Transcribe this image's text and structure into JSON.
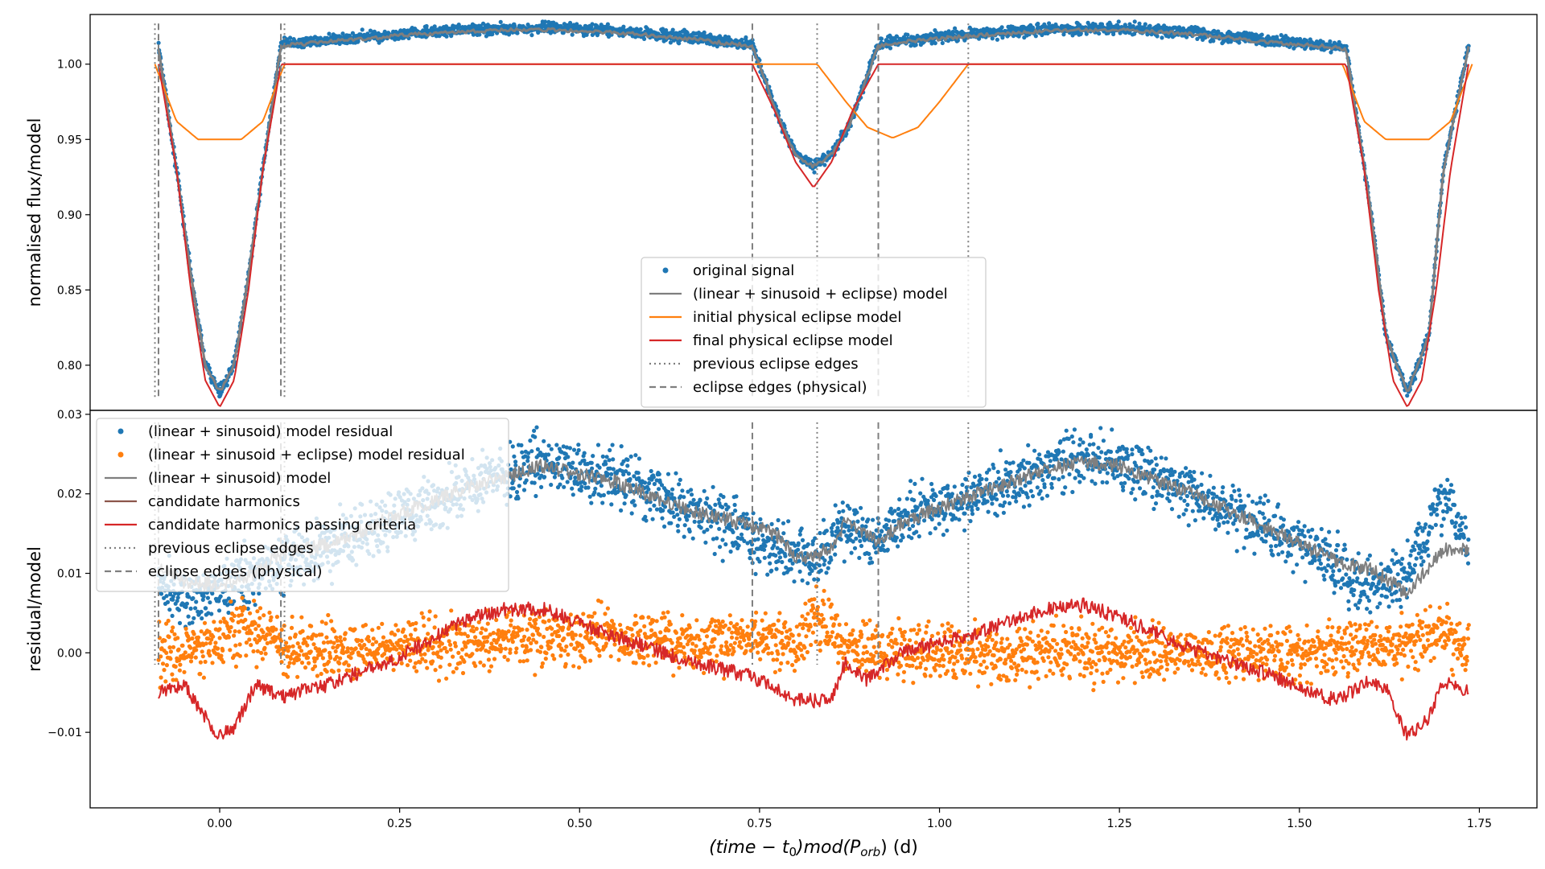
{
  "chart_data": [
    {
      "type": "line",
      "panel": "top",
      "title": "",
      "xlabel": "",
      "ylabel": "normalised flux/model",
      "xlim": [
        -0.18,
        1.83
      ],
      "ylim": [
        0.77,
        1.033
      ],
      "yticks": [
        0.8,
        0.85,
        0.9,
        0.95,
        1.0
      ],
      "ytick_labels": [
        "0.80",
        "0.85",
        "0.90",
        "0.95",
        "1.00"
      ],
      "legend_position": "lower-center",
      "legend": [
        {
          "label": "original signal",
          "style": "scatter",
          "color": "#1f77b4"
        },
        {
          "label": "(linear + sinusoid + eclipse) model",
          "style": "solid",
          "color": "#7f7f7f"
        },
        {
          "label": "initial physical eclipse model",
          "style": "solid",
          "color": "#ff7f0e"
        },
        {
          "label": "final physical eclipse model",
          "style": "solid",
          "color": "#d62728"
        },
        {
          "label": "previous eclipse edges",
          "style": "dotted",
          "color": "#7f7f7f"
        },
        {
          "label": "eclipse edges (physical)",
          "style": "dashed",
          "color": "#7f7f7f"
        }
      ],
      "previous_eclipse_edges": [
        -0.09,
        0.09,
        0.83,
        1.04
      ],
      "physical_eclipse_edges": [
        -0.085,
        0.085,
        0.74,
        0.915
      ],
      "series": [
        {
          "name": "original signal",
          "kind": "scatter",
          "color": "#1f77b4",
          "x": [
            -0.085,
            -0.06,
            -0.04,
            -0.02,
            0.0,
            0.02,
            0.04,
            0.06,
            0.085,
            0.15,
            0.25,
            0.35,
            0.45,
            0.55,
            0.65,
            0.7,
            0.74,
            0.78,
            0.8,
            0.825,
            0.85,
            0.875,
            0.915,
            0.95,
            1.05,
            1.15,
            1.25,
            1.35,
            1.45,
            1.55,
            1.565,
            1.6,
            1.62,
            1.65,
            1.68,
            1.7,
            1.735
          ],
          "y": [
            1.012,
            0.93,
            0.86,
            0.8,
            0.782,
            0.8,
            0.86,
            0.93,
            1.013,
            1.016,
            1.02,
            1.023,
            1.024,
            1.022,
            1.018,
            1.015,
            1.013,
            0.96,
            0.94,
            0.932,
            0.94,
            0.96,
            1.013,
            1.016,
            1.02,
            1.023,
            1.024,
            1.021,
            1.016,
            1.012,
            1.011,
            0.9,
            0.82,
            0.782,
            0.82,
            0.93,
            1.012
          ]
        },
        {
          "name": "(linear + sinusoid + eclipse) model",
          "kind": "line",
          "color": "#7f7f7f",
          "x": [
            -0.085,
            -0.06,
            -0.04,
            -0.02,
            0.0,
            0.02,
            0.04,
            0.06,
            0.085,
            0.15,
            0.25,
            0.35,
            0.45,
            0.55,
            0.65,
            0.7,
            0.74,
            0.78,
            0.8,
            0.825,
            0.85,
            0.875,
            0.915,
            0.95,
            1.05,
            1.15,
            1.25,
            1.35,
            1.45,
            1.55,
            1.565,
            1.6,
            1.62,
            1.65,
            1.68,
            1.7,
            1.735
          ],
          "y": [
            1.011,
            0.93,
            0.86,
            0.8,
            0.782,
            0.8,
            0.86,
            0.93,
            1.012,
            1.015,
            1.019,
            1.022,
            1.023,
            1.021,
            1.017,
            1.014,
            1.012,
            0.96,
            0.94,
            0.932,
            0.94,
            0.96,
            1.012,
            1.015,
            1.019,
            1.022,
            1.023,
            1.02,
            1.015,
            1.011,
            1.01,
            0.9,
            0.82,
            0.782,
            0.82,
            0.93,
            1.011
          ]
        },
        {
          "name": "initial physical eclipse model",
          "kind": "line",
          "color": "#ff7f0e",
          "x": [
            -0.09,
            -0.06,
            -0.03,
            0.0,
            0.03,
            0.06,
            0.09,
            0.5,
            0.83,
            0.87,
            0.9,
            0.935,
            0.97,
            1.0,
            1.04,
            1.5,
            1.56,
            1.59,
            1.62,
            1.65,
            1.68,
            1.71,
            1.74
          ],
          "y": [
            1.0,
            0.962,
            0.95,
            0.95,
            0.95,
            0.962,
            1.0,
            1.0,
            1.0,
            0.975,
            0.958,
            0.951,
            0.958,
            0.975,
            1.0,
            1.0,
            1.0,
            0.962,
            0.95,
            0.95,
            0.95,
            0.962,
            1.0
          ]
        },
        {
          "name": "final physical eclipse model",
          "kind": "line",
          "color": "#d62728",
          "x": [
            -0.085,
            -0.06,
            -0.04,
            -0.02,
            0.0,
            0.02,
            0.04,
            0.06,
            0.085,
            0.5,
            0.74,
            0.77,
            0.8,
            0.825,
            0.85,
            0.88,
            0.915,
            1.5,
            1.565,
            1.59,
            1.61,
            1.63,
            1.65,
            1.67,
            1.69,
            1.71,
            1.735
          ],
          "y": [
            1.0,
            0.93,
            0.85,
            0.79,
            0.772,
            0.79,
            0.85,
            0.93,
            1.0,
            1.0,
            1.0,
            0.97,
            0.935,
            0.918,
            0.935,
            0.97,
            1.0,
            1.0,
            1.0,
            0.93,
            0.85,
            0.79,
            0.772,
            0.79,
            0.85,
            0.93,
            1.0
          ]
        }
      ]
    },
    {
      "type": "line",
      "panel": "bottom",
      "title": "",
      "xlabel": "(time − t0)mod(Porb) (d)",
      "ylabel": "residual/model",
      "xlim": [
        -0.18,
        1.83
      ],
      "ylim": [
        -0.0195,
        0.0305
      ],
      "xticks": [
        0.0,
        0.25,
        0.5,
        0.75,
        1.0,
        1.25,
        1.5,
        1.75
      ],
      "xtick_labels": [
        "0.00",
        "0.25",
        "0.50",
        "0.75",
        "1.00",
        "1.25",
        "1.50",
        "1.75"
      ],
      "yticks": [
        -0.01,
        0.0,
        0.01,
        0.02,
        0.03
      ],
      "ytick_labels": [
        "−0.01",
        "0.00",
        "0.01",
        "0.02",
        "0.03"
      ],
      "legend_position": "upper-left",
      "legend": [
        {
          "label": "(linear + sinusoid) model residual",
          "style": "scatter",
          "color": "#1f77b4"
        },
        {
          "label": "(linear + sinusoid + eclipse) model residual",
          "style": "scatter",
          "color": "#ff7f0e"
        },
        {
          "label": "(linear + sinusoid) model",
          "style": "solid",
          "color": "#7f7f7f"
        },
        {
          "label": "candidate harmonics",
          "style": "solid",
          "color": "#8c564b"
        },
        {
          "label": "candidate harmonics passing criteria",
          "style": "solid",
          "color": "#d62728"
        },
        {
          "label": "previous eclipse edges",
          "style": "dotted",
          "color": "#7f7f7f"
        },
        {
          "label": "eclipse edges (physical)",
          "style": "dashed",
          "color": "#7f7f7f"
        }
      ],
      "previous_eclipse_edges": [
        -0.09,
        0.09,
        0.83,
        1.04
      ],
      "physical_eclipse_edges": [
        -0.085,
        0.085,
        0.74,
        0.915
      ],
      "series": [
        {
          "name": "(linear + sinusoid) model residual",
          "kind": "scatter",
          "color": "#1f77b4",
          "x": [
            -0.085,
            -0.05,
            0.0,
            0.05,
            0.085,
            0.15,
            0.25,
            0.35,
            0.45,
            0.55,
            0.65,
            0.74,
            0.8,
            0.825,
            0.87,
            0.915,
            0.95,
            1.05,
            1.15,
            1.2,
            1.25,
            1.35,
            1.45,
            1.55,
            1.6,
            1.65,
            1.7,
            1.735
          ],
          "y": [
            0.01,
            0.006,
            0.008,
            0.01,
            0.012,
            0.013,
            0.017,
            0.021,
            0.024,
            0.022,
            0.018,
            0.015,
            0.012,
            0.012,
            0.016,
            0.014,
            0.017,
            0.02,
            0.023,
            0.024,
            0.024,
            0.02,
            0.016,
            0.011,
            0.008,
            0.01,
            0.02,
            0.014
          ]
        },
        {
          "name": "(linear + sinusoid + eclipse) model residual",
          "kind": "scatter",
          "color": "#ff7f0e",
          "x": [
            -0.085,
            -0.05,
            0.0,
            0.05,
            0.085,
            0.15,
            0.25,
            0.35,
            0.45,
            0.55,
            0.65,
            0.74,
            0.8,
            0.825,
            0.87,
            0.915,
            0.95,
            1.05,
            1.15,
            1.25,
            1.35,
            1.45,
            1.55,
            1.6,
            1.65,
            1.7,
            1.735
          ],
          "y": [
            0.0,
            0.0,
            0.002,
            0.003,
            0.001,
            0.0,
            0.001,
            0.001,
            0.002,
            0.002,
            0.001,
            0.002,
            0.001,
            0.004,
            0.001,
            0.0,
            0.0,
            0.0,
            0.0,
            0.0,
            0.0,
            0.0,
            0.0,
            0.001,
            0.001,
            0.003,
            0.0
          ]
        },
        {
          "name": "(linear + sinusoid) model",
          "kind": "line",
          "color": "#7f7f7f",
          "x": [
            -0.085,
            -0.05,
            0.0,
            0.05,
            0.085,
            0.15,
            0.25,
            0.35,
            0.45,
            0.55,
            0.65,
            0.74,
            0.78,
            0.8,
            0.825,
            0.85,
            0.87,
            0.9,
            0.915,
            0.95,
            1.05,
            1.15,
            1.2,
            1.25,
            1.35,
            1.45,
            1.55,
            1.6,
            1.65,
            1.7,
            1.735
          ],
          "y": [
            0.011,
            0.009,
            0.0085,
            0.01,
            0.0125,
            0.0135,
            0.0175,
            0.021,
            0.0235,
            0.0215,
            0.018,
            0.016,
            0.0145,
            0.012,
            0.012,
            0.0135,
            0.0165,
            0.015,
            0.014,
            0.0165,
            0.02,
            0.023,
            0.024,
            0.0235,
            0.02,
            0.016,
            0.0115,
            0.0105,
            0.0075,
            0.013,
            0.013
          ]
        },
        {
          "name": "candidate harmonics passing criteria",
          "kind": "line",
          "color": "#d62728",
          "x": [
            -0.085,
            -0.05,
            -0.02,
            0.0,
            0.02,
            0.05,
            0.085,
            0.15,
            0.25,
            0.35,
            0.4,
            0.45,
            0.55,
            0.65,
            0.74,
            0.78,
            0.8,
            0.825,
            0.85,
            0.87,
            0.9,
            0.915,
            0.95,
            1.05,
            1.15,
            1.2,
            1.25,
            1.35,
            1.45,
            1.55,
            1.6,
            1.62,
            1.65,
            1.68,
            1.7,
            1.735
          ],
          "y": [
            -0.005,
            -0.004,
            -0.008,
            -0.0105,
            -0.0095,
            -0.004,
            -0.0055,
            -0.004,
            -0.0005,
            0.0045,
            0.0055,
            0.0055,
            0.002,
            -0.001,
            -0.003,
            -0.005,
            -0.006,
            -0.006,
            -0.006,
            -0.001,
            -0.0035,
            -0.002,
            0.0,
            0.0025,
            0.0055,
            0.006,
            0.0045,
            0.0005,
            -0.0025,
            -0.006,
            -0.0035,
            -0.0045,
            -0.0105,
            -0.008,
            -0.0035,
            -0.005
          ]
        }
      ]
    }
  ]
}
